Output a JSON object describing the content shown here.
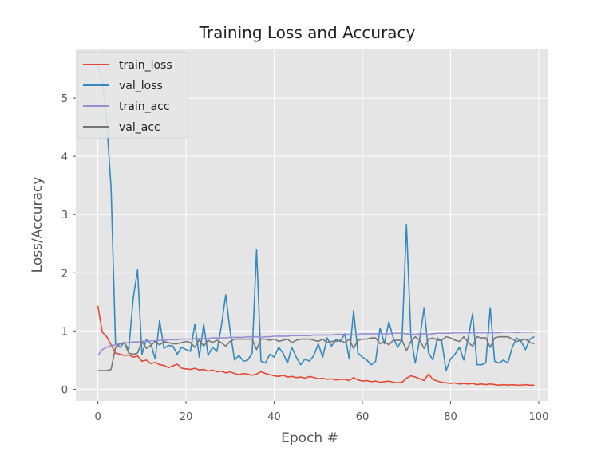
{
  "chart_data": {
    "type": "line",
    "title": "Training Loss and Accuracy",
    "xlabel": "Epoch #",
    "ylabel": "Loss/Accuracy",
    "xlim": [
      -5,
      102
    ],
    "ylim": [
      -0.2,
      5.85
    ],
    "xticks": [
      0,
      20,
      40,
      60,
      80,
      100
    ],
    "yticks": [
      0,
      1,
      2,
      3,
      4,
      5
    ],
    "grid": true,
    "legend_position": "top-left",
    "series": [
      {
        "name": "train_loss",
        "color": "#E24A33",
        "values": [
          1.43,
          0.98,
          0.9,
          0.76,
          0.62,
          0.6,
          0.58,
          0.59,
          0.55,
          0.57,
          0.48,
          0.5,
          0.44,
          0.46,
          0.42,
          0.41,
          0.37,
          0.4,
          0.43,
          0.36,
          0.35,
          0.34,
          0.36,
          0.33,
          0.34,
          0.31,
          0.33,
          0.3,
          0.31,
          0.28,
          0.3,
          0.27,
          0.25,
          0.27,
          0.26,
          0.24,
          0.26,
          0.3,
          0.27,
          0.25,
          0.23,
          0.22,
          0.24,
          0.21,
          0.22,
          0.2,
          0.21,
          0.19,
          0.22,
          0.2,
          0.18,
          0.19,
          0.17,
          0.18,
          0.16,
          0.17,
          0.17,
          0.15,
          0.2,
          0.16,
          0.14,
          0.15,
          0.13,
          0.14,
          0.12,
          0.13,
          0.14,
          0.12,
          0.11,
          0.12,
          0.19,
          0.23,
          0.21,
          0.18,
          0.15,
          0.26,
          0.17,
          0.14,
          0.12,
          0.11,
          0.1,
          0.11,
          0.09,
          0.1,
          0.09,
          0.1,
          0.08,
          0.09,
          0.08,
          0.09,
          0.08,
          0.07,
          0.08,
          0.07,
          0.08,
          0.07,
          0.07,
          0.08,
          0.07,
          0.07
        ]
      },
      {
        "name": "val_loss",
        "color": "#348ABD",
        "values": [
          5.55,
          5.3,
          4.6,
          3.45,
          0.78,
          0.72,
          0.8,
          0.68,
          1.55,
          2.05,
          0.6,
          0.85,
          0.78,
          0.52,
          1.18,
          0.7,
          0.75,
          0.74,
          0.6,
          0.72,
          0.68,
          0.65,
          1.12,
          0.55,
          1.12,
          0.58,
          0.72,
          0.65,
          1.08,
          1.62,
          1.0,
          0.5,
          0.58,
          0.48,
          0.5,
          0.62,
          2.4,
          0.48,
          0.45,
          0.6,
          0.55,
          0.72,
          0.62,
          0.45,
          0.72,
          0.55,
          0.42,
          0.52,
          0.48,
          0.58,
          0.78,
          0.55,
          0.88,
          0.74,
          0.85,
          0.82,
          0.95,
          0.52,
          1.35,
          0.62,
          0.55,
          0.5,
          0.42,
          0.48,
          1.05,
          0.78,
          1.16,
          0.88,
          0.72,
          0.85,
          2.83,
          0.92,
          0.45,
          0.86,
          1.4,
          0.62,
          0.5,
          0.88,
          0.82,
          0.32,
          0.52,
          0.6,
          0.72,
          0.5,
          0.88,
          1.3,
          0.42,
          0.42,
          0.45,
          1.4,
          0.48,
          0.45,
          0.5,
          0.45,
          0.72,
          0.88,
          0.82,
          0.68,
          0.86,
          0.9
        ]
      },
      {
        "name": "train_acc",
        "color": "#988ED5",
        "values": [
          0.58,
          0.68,
          0.72,
          0.75,
          0.76,
          0.78,
          0.79,
          0.8,
          0.81,
          0.81,
          0.82,
          0.82,
          0.83,
          0.83,
          0.84,
          0.84,
          0.85,
          0.85,
          0.85,
          0.86,
          0.86,
          0.86,
          0.87,
          0.87,
          0.87,
          0.87,
          0.88,
          0.88,
          0.88,
          0.88,
          0.89,
          0.89,
          0.89,
          0.89,
          0.9,
          0.9,
          0.9,
          0.89,
          0.9,
          0.9,
          0.91,
          0.91,
          0.91,
          0.91,
          0.92,
          0.92,
          0.92,
          0.92,
          0.92,
          0.93,
          0.93,
          0.93,
          0.93,
          0.93,
          0.94,
          0.94,
          0.94,
          0.94,
          0.93,
          0.94,
          0.95,
          0.95,
          0.95,
          0.95,
          0.95,
          0.95,
          0.95,
          0.96,
          0.96,
          0.96,
          0.95,
          0.94,
          0.94,
          0.95,
          0.95,
          0.94,
          0.95,
          0.96,
          0.96,
          0.96,
          0.96,
          0.97,
          0.97,
          0.97,
          0.97,
          0.97,
          0.97,
          0.97,
          0.97,
          0.97,
          0.97,
          0.97,
          0.98,
          0.98,
          0.98,
          0.97,
          0.98,
          0.98,
          0.98,
          0.98
        ]
      },
      {
        "name": "val_acc",
        "color": "#777777",
        "values": [
          0.32,
          0.32,
          0.32,
          0.34,
          0.72,
          0.78,
          0.8,
          0.62,
          0.6,
          0.62,
          0.82,
          0.7,
          0.75,
          0.82,
          0.76,
          0.82,
          0.8,
          0.78,
          0.78,
          0.8,
          0.82,
          0.8,
          0.72,
          0.85,
          0.74,
          0.84,
          0.8,
          0.84,
          0.8,
          0.74,
          0.82,
          0.86,
          0.86,
          0.86,
          0.86,
          0.86,
          0.68,
          0.86,
          0.86,
          0.84,
          0.86,
          0.82,
          0.84,
          0.86,
          0.8,
          0.84,
          0.86,
          0.86,
          0.86,
          0.84,
          0.82,
          0.86,
          0.8,
          0.82,
          0.82,
          0.84,
          0.8,
          0.86,
          0.7,
          0.84,
          0.86,
          0.86,
          0.88,
          0.88,
          0.78,
          0.82,
          0.76,
          0.84,
          0.84,
          0.84,
          0.66,
          0.82,
          0.9,
          0.84,
          0.7,
          0.86,
          0.88,
          0.84,
          0.84,
          0.9,
          0.88,
          0.84,
          0.82,
          0.9,
          0.8,
          0.74,
          0.9,
          0.88,
          0.88,
          0.72,
          0.88,
          0.9,
          0.9,
          0.9,
          0.86,
          0.82,
          0.84,
          0.86,
          0.8,
          0.78
        ]
      }
    ]
  }
}
